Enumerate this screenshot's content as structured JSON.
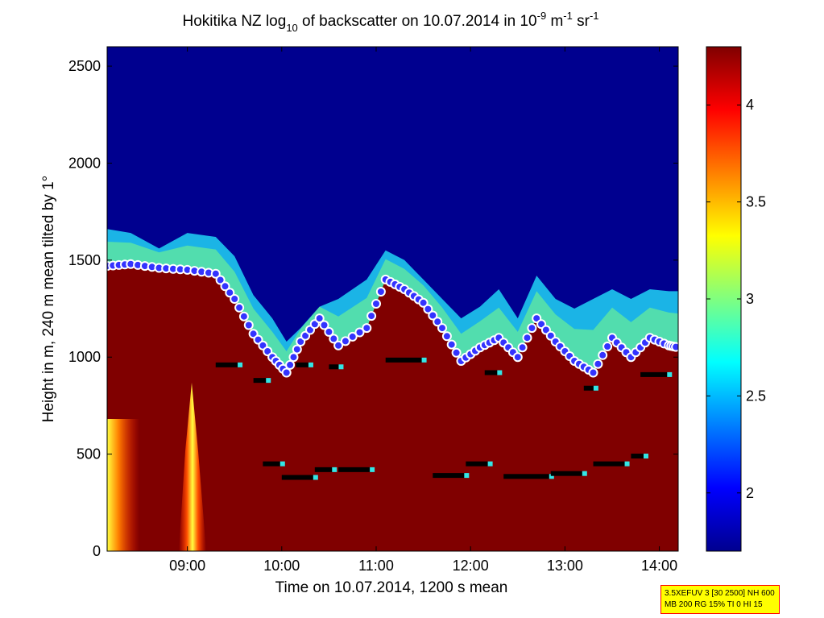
{
  "chart_data": {
    "type": "heatmap",
    "title": {
      "text": "Hokitika NZ log",
      "sub1": "10",
      "mid": " of backscatter on 10.07.2014 in 10",
      "sup1": "-9",
      "mid2": " m",
      "sup2": "-1",
      "mid3": " sr",
      "sup3": "-1"
    },
    "xlabel": "Time on 10.07.2014, 1200 s mean",
    "ylabel": "Height in m, 240 m mean tilted by 1°",
    "x_ticks": [
      "09:00",
      "10:00",
      "11:00",
      "12:00",
      "13:00",
      "14:00"
    ],
    "x_tick_hours": [
      9,
      10,
      11,
      12,
      13,
      14
    ],
    "xlim_hours": [
      8.15,
      14.2
    ],
    "y_ticks": [
      "0",
      "500",
      "1000",
      "1500",
      "2000",
      "2500"
    ],
    "y_tick_values": [
      0,
      500,
      1000,
      1500,
      2000,
      2500
    ],
    "ylim": [
      0,
      2600
    ],
    "colorbar": {
      "label": "",
      "ticks": [
        "2",
        "2.5",
        "3",
        "3.5",
        "4"
      ],
      "tick_values": [
        2,
        2.5,
        3,
        3.5,
        4
      ],
      "range": [
        1.7,
        4.3
      ],
      "colormap": "jet"
    },
    "boundary_layer_top": [
      [
        8.15,
        1470
      ],
      [
        8.4,
        1480
      ],
      [
        8.7,
        1460
      ],
      [
        9.0,
        1450
      ],
      [
        9.3,
        1430
      ],
      [
        9.5,
        1300
      ],
      [
        9.7,
        1120
      ],
      [
        9.9,
        1000
      ],
      [
        10.05,
        920
      ],
      [
        10.2,
        1080
      ],
      [
        10.4,
        1200
      ],
      [
        10.6,
        1060
      ],
      [
        10.9,
        1150
      ],
      [
        11.1,
        1400
      ],
      [
        11.3,
        1350
      ],
      [
        11.5,
        1280
      ],
      [
        11.7,
        1150
      ],
      [
        11.9,
        980
      ],
      [
        12.1,
        1050
      ],
      [
        12.3,
        1100
      ],
      [
        12.5,
        1000
      ],
      [
        12.7,
        1200
      ],
      [
        12.9,
        1080
      ],
      [
        13.1,
        980
      ],
      [
        13.3,
        920
      ],
      [
        13.5,
        1100
      ],
      [
        13.7,
        1000
      ],
      [
        13.9,
        1100
      ],
      [
        14.1,
        1060
      ],
      [
        14.2,
        1050
      ]
    ],
    "aerosol_top": [
      [
        8.15,
        1660
      ],
      [
        8.4,
        1640
      ],
      [
        8.7,
        1560
      ],
      [
        9.0,
        1640
      ],
      [
        9.3,
        1620
      ],
      [
        9.5,
        1520
      ],
      [
        9.7,
        1320
      ],
      [
        9.9,
        1200
      ],
      [
        10.05,
        1080
      ],
      [
        10.2,
        1150
      ],
      [
        10.4,
        1260
      ],
      [
        10.6,
        1300
      ],
      [
        10.9,
        1400
      ],
      [
        11.1,
        1550
      ],
      [
        11.3,
        1500
      ],
      [
        11.5,
        1400
      ],
      [
        11.7,
        1300
      ],
      [
        11.9,
        1200
      ],
      [
        12.1,
        1260
      ],
      [
        12.3,
        1350
      ],
      [
        12.5,
        1200
      ],
      [
        12.7,
        1420
      ],
      [
        12.9,
        1300
      ],
      [
        13.1,
        1250
      ],
      [
        13.3,
        1300
      ],
      [
        13.5,
        1350
      ],
      [
        13.7,
        1300
      ],
      [
        13.9,
        1350
      ],
      [
        14.1,
        1340
      ],
      [
        14.2,
        1340
      ]
    ],
    "cloud_base_segments": [
      [
        9.3,
        9.55,
        960
      ],
      [
        9.7,
        9.85,
        880
      ],
      [
        10.15,
        10.3,
        960
      ],
      [
        10.5,
        10.62,
        950
      ],
      [
        11.1,
        11.5,
        985
      ],
      [
        12.15,
        12.3,
        920
      ],
      [
        13.2,
        13.32,
        840
      ],
      [
        13.8,
        14.1,
        910
      ],
      [
        9.8,
        10.0,
        450
      ],
      [
        10.0,
        10.35,
        380
      ],
      [
        10.35,
        10.55,
        420
      ],
      [
        10.6,
        10.95,
        420
      ],
      [
        11.6,
        11.95,
        390
      ],
      [
        11.95,
        12.2,
        450
      ],
      [
        12.35,
        12.85,
        385
      ],
      [
        12.85,
        13.2,
        400
      ],
      [
        13.3,
        13.65,
        450
      ],
      [
        13.7,
        13.85,
        490
      ]
    ]
  },
  "info_box": {
    "line1": "3.5XEFUV 3 [30 2500] NH 600",
    "line2": "MB 200 RG 15% TI 0 HI 15"
  }
}
